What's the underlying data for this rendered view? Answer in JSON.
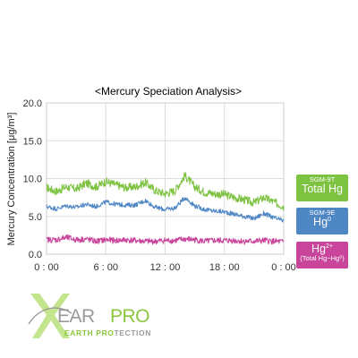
{
  "chart_data": {
    "type": "line",
    "title": "<Mercury Speciation Analysis>",
    "ylabel": "Mercury Concentration [μg/m³]",
    "xlabel": "",
    "x_ticks": [
      "0 : 00",
      "6 : 00",
      "12 : 00",
      "18 : 00",
      "0 : 00"
    ],
    "y_ticks": [
      "0.0",
      "5.0",
      "10.0",
      "15.0",
      "20.0"
    ],
    "ylim": [
      0,
      20
    ],
    "xlim_hours": [
      0,
      24
    ],
    "grid": true,
    "series": [
      {
        "name": "SGM-9T Total Hg",
        "color": "#7ec242",
        "x": [
          0,
          1,
          2,
          3,
          4,
          5,
          6,
          7,
          8,
          9,
          10,
          11,
          12,
          13,
          14,
          15,
          16,
          17,
          18,
          19,
          20,
          21,
          22,
          23,
          24
        ],
        "values": [
          8.8,
          8.3,
          8.9,
          8.6,
          9.4,
          8.9,
          9.6,
          9.2,
          8.8,
          8.9,
          9.5,
          8.4,
          8.0,
          8.4,
          10.4,
          8.9,
          8.2,
          8.0,
          7.9,
          7.5,
          7.2,
          6.8,
          7.5,
          6.9,
          6.3
        ]
      },
      {
        "name": "SGM-9E Hg°",
        "color": "#4f87c5",
        "x": [
          0,
          1,
          2,
          3,
          4,
          5,
          6,
          7,
          8,
          9,
          10,
          11,
          12,
          13,
          14,
          15,
          16,
          17,
          18,
          19,
          20,
          21,
          22,
          23,
          24
        ],
        "values": [
          6.3,
          6.0,
          6.4,
          6.2,
          6.6,
          6.3,
          6.9,
          6.6,
          6.5,
          6.5,
          7.1,
          6.2,
          5.9,
          6.1,
          7.5,
          6.4,
          5.9,
          5.7,
          5.6,
          5.3,
          5.0,
          4.7,
          5.4,
          4.8,
          4.4
        ]
      },
      {
        "name": "Hg²⁺ (Total Hg−Hg°)",
        "color": "#c8459b",
        "x": [
          0,
          1,
          2,
          3,
          4,
          5,
          6,
          7,
          8,
          9,
          10,
          11,
          12,
          13,
          14,
          15,
          16,
          17,
          18,
          19,
          20,
          21,
          22,
          23,
          24
        ],
        "values": [
          1.9,
          1.9,
          2.2,
          1.9,
          2.0,
          1.7,
          1.9,
          1.8,
          1.9,
          1.8,
          1.7,
          1.7,
          1.8,
          1.8,
          2.0,
          1.9,
          1.7,
          1.8,
          1.8,
          1.8,
          1.7,
          1.7,
          1.8,
          1.7,
          1.6
        ]
      }
    ],
    "labels": {
      "total": {
        "small": "SGM-9T",
        "big": "Total Hg",
        "color": "#7ec242"
      },
      "elemental": {
        "small": "SGM-9E",
        "big": "Hg",
        "sup": "0",
        "color": "#4f87c5"
      },
      "oxidized": {
        "big": "Hg",
        "sup": "2+",
        "small": "(Total Hg−Hg⁰)",
        "color": "#c8459b"
      }
    }
  },
  "logo": {
    "brand_ear": "EAR",
    "brand_pro": "PRO",
    "tagline_a": "EARTH PRO",
    "tagline_b": "TECTION",
    "colors": {
      "gray": "#9a9a9a",
      "green": "#8cc63f",
      "x_green": "#b8e07a"
    }
  }
}
